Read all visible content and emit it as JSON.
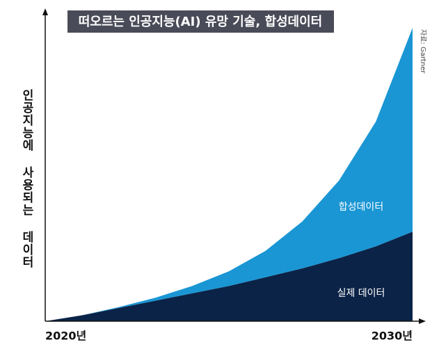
{
  "chart_data": {
    "type": "stacked-area",
    "title": "떠오르는 인공지능(AI) 유망 기술, 합성데이터",
    "y_label": "인공지능에 사용되는 데이터",
    "source": "자료: Gartner",
    "x": [
      "2020년",
      null,
      null,
      null,
      null,
      null,
      null,
      null,
      null,
      null,
      "2030년"
    ],
    "series": [
      {
        "name": "실제 데이터",
        "color": "#0b2347",
        "values": [
          0,
          2,
          4.5,
          7,
          9.5,
          12,
          15,
          18,
          21.5,
          25.5,
          30.5
        ]
      },
      {
        "name": "합성데이터",
        "color": "#1a96d4",
        "values": [
          0,
          0,
          0.3,
          1,
          2.5,
          5,
          9,
          16,
          26.5,
          42.5,
          69.5
        ]
      }
    ],
    "ylim": [
      0,
      100
    ]
  }
}
